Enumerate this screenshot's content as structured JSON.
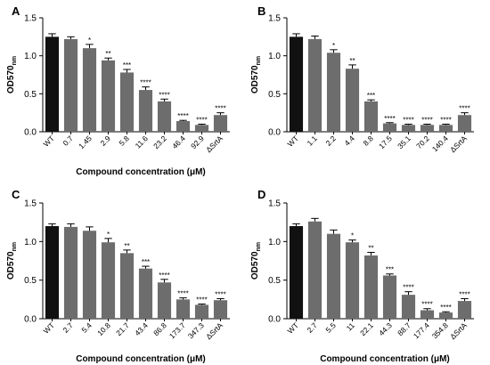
{
  "colors": {
    "wt_bar": "#111111",
    "bar": "#6d6d6d",
    "axis": "#000000"
  },
  "chart_data": [
    {
      "panel": "A",
      "type": "bar",
      "ylabel": "OD570",
      "ylabel_sub": "nm",
      "xlabel": "Compound concentration (μM)",
      "ylim": [
        0,
        1.5
      ],
      "yticks": [
        "0.0",
        "0.5",
        "1.0",
        "1.5"
      ],
      "categories": [
        "WT",
        "0.7",
        "1.45",
        "2.9",
        "5.8",
        "11.6",
        "23.2",
        "46.4",
        "92.9",
        "ΔSrtA"
      ],
      "values": [
        1.25,
        1.22,
        1.1,
        0.94,
        0.78,
        0.55,
        0.4,
        0.14,
        0.09,
        0.22
      ],
      "errors": [
        0.04,
        0.03,
        0.05,
        0.03,
        0.04,
        0.04,
        0.03,
        0.01,
        0.01,
        0.03
      ],
      "significance": [
        "",
        "",
        "*",
        "**",
        "***",
        "****",
        "****",
        "****",
        "****",
        "****"
      ]
    },
    {
      "panel": "B",
      "type": "bar",
      "ylabel": "OD570",
      "ylabel_sub": "nm",
      "xlabel": "",
      "ylim": [
        0,
        1.5
      ],
      "yticks": [
        "0.0",
        "0.5",
        "1.0",
        "1.5"
      ],
      "categories": [
        "WT",
        "1.1",
        "2.2",
        "4.4",
        "8.8",
        "17.5",
        "35.1",
        "70.2",
        "140.4",
        "ΔSrtA"
      ],
      "values": [
        1.25,
        1.22,
        1.04,
        0.83,
        0.4,
        0.11,
        0.09,
        0.09,
        0.09,
        0.22
      ],
      "errors": [
        0.04,
        0.04,
        0.04,
        0.05,
        0.02,
        0.01,
        0.01,
        0.01,
        0.01,
        0.03
      ],
      "significance": [
        "",
        "",
        "*",
        "**",
        "***",
        "****",
        "****",
        "****",
        "****",
        "****"
      ]
    },
    {
      "panel": "C",
      "type": "bar",
      "ylabel": "OD570",
      "ylabel_sub": "nm",
      "xlabel": "Compound concentration (μM)",
      "ylim": [
        0,
        1.5
      ],
      "yticks": [
        "0.0",
        "0.5",
        "1.0",
        "1.5"
      ],
      "categories": [
        "WT",
        "2.7",
        "5.4",
        "10.8",
        "21.7",
        "43.4",
        "86.8",
        "173.7",
        "347.3",
        "ΔSrtA"
      ],
      "values": [
        1.2,
        1.19,
        1.14,
        0.99,
        0.85,
        0.65,
        0.47,
        0.25,
        0.18,
        0.24
      ],
      "errors": [
        0.03,
        0.04,
        0.05,
        0.05,
        0.04,
        0.03,
        0.04,
        0.02,
        0.01,
        0.02
      ],
      "significance": [
        "",
        "",
        "",
        "*",
        "**",
        "***",
        "****",
        "****",
        "****",
        "****"
      ]
    },
    {
      "panel": "D",
      "type": "bar",
      "ylabel": "OD570",
      "ylabel_sub": "nm",
      "xlabel": "Compound concentration (μM)",
      "ylim": [
        0,
        1.5
      ],
      "yticks": [
        "0.0",
        "0.5",
        "1.0",
        "1.5"
      ],
      "categories": [
        "WT",
        "2.7",
        "5.5",
        "11",
        "22.1",
        "44.3",
        "88.7",
        "177.4",
        "354.8",
        "ΔSrtA"
      ],
      "values": [
        1.2,
        1.26,
        1.1,
        0.99,
        0.82,
        0.56,
        0.31,
        0.11,
        0.08,
        0.23
      ],
      "errors": [
        0.03,
        0.04,
        0.05,
        0.03,
        0.04,
        0.02,
        0.04,
        0.02,
        0.01,
        0.03
      ],
      "significance": [
        "",
        "",
        "",
        "*",
        "**",
        "***",
        "****",
        "****",
        "****",
        "****"
      ]
    }
  ]
}
